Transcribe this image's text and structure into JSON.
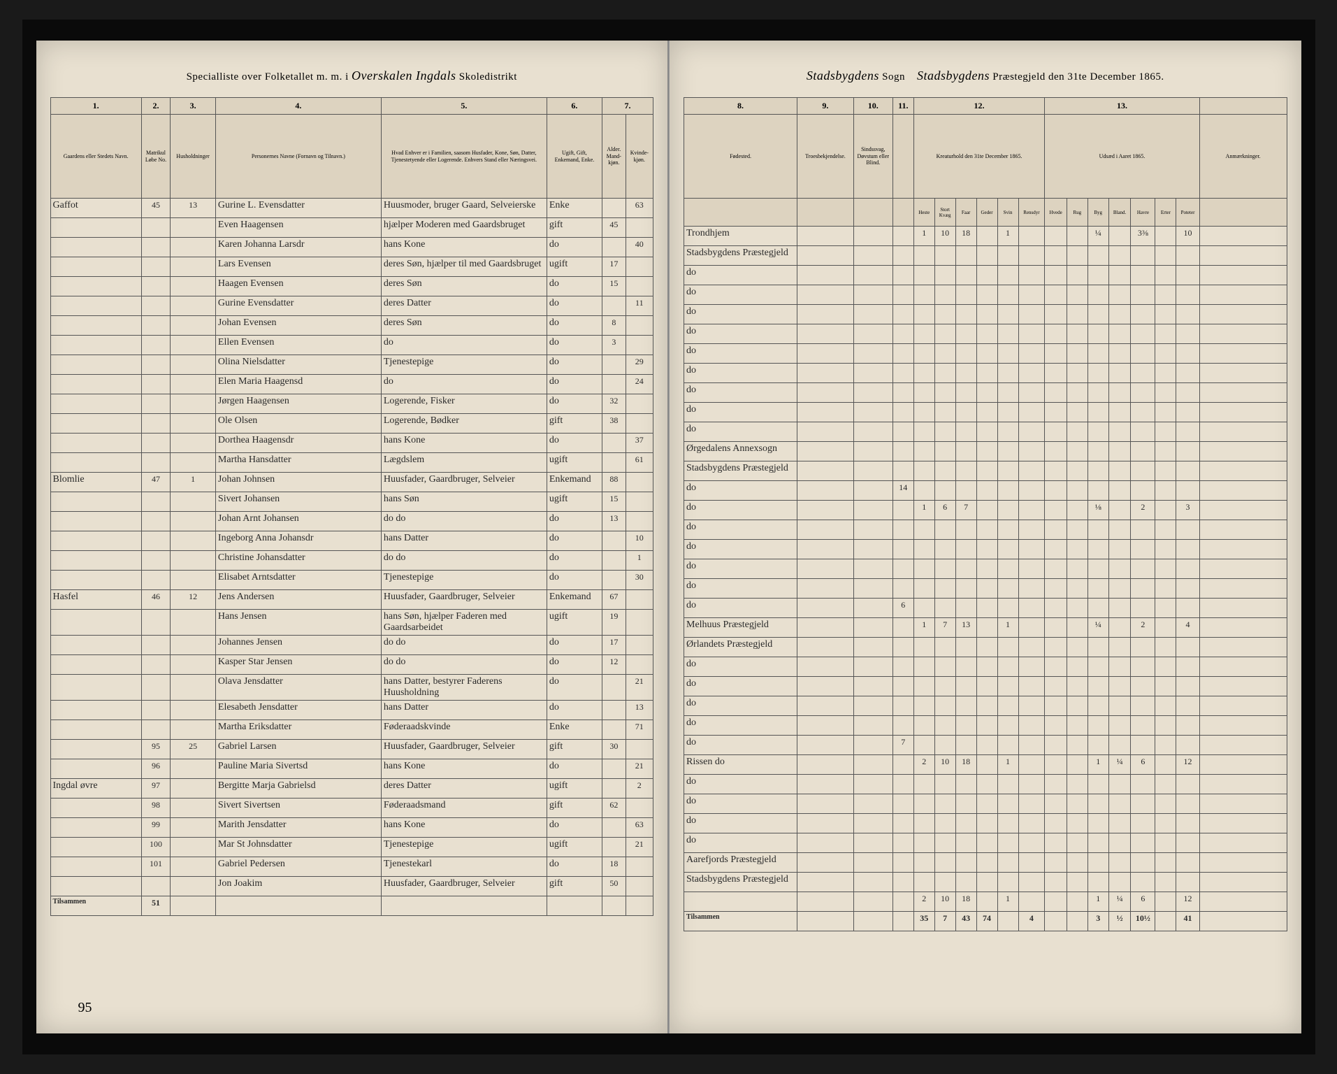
{
  "header_left": {
    "prefix": "Specialliste over Folketallet m. m. i",
    "script": "Overskalen Ingdals",
    "suffix": "Skoledistrikt"
  },
  "header_right": {
    "script1": "Stadsbygdens",
    "label1": "Sogn",
    "script2": "Stadsbygdens",
    "label2": "Præstegjeld den 31te December 1865."
  },
  "cols_left": {
    "c1": "1.",
    "c2": "2.",
    "c3": "3.",
    "c4": "4.",
    "c5": "5.",
    "c6": "6.",
    "c7": "7."
  },
  "cols_right": {
    "c8": "8.",
    "c9": "9.",
    "c10": "10.",
    "c11": "11.",
    "c12": "12.",
    "c13": "13."
  },
  "heads_left": {
    "h1": "Gaardens eller Stedets Navn.",
    "h2a": "Matrikul Løbe No.",
    "h2b": "Husholdninger",
    "h4": "Personernes Navne (Fornavn og Tilnavn.)",
    "h5": "Hvad Enhver er i Familien, saasom Husfader, Kone, Søn, Datter, Tjenestetyende eller Logerende. Enhvers Stand eller Næringsvei.",
    "h6": "Ugift, Gift, Enkemand, Enke.",
    "h7a": "Alder. Mand-kjøn.",
    "h7b": "Kvinde-kjøn."
  },
  "heads_right": {
    "h8": "Fødested.",
    "h9": "Troesbekjendelse.",
    "h10": "Sindssvag, Døvstum eller Blind.",
    "h11": "",
    "h12": "Kreaturhold den 31te December 1865.",
    "h13": "Udsæd i Aaret 1865.",
    "h14": "Anmærkninger."
  },
  "sub12": [
    "Heste",
    "Stort Kvæg",
    "Faar",
    "Geder",
    "Svin",
    "Rensdyr"
  ],
  "sub13": [
    "Hvede",
    "Rug",
    "Byg",
    "Bland.",
    "Havre",
    "Erter",
    "Poteter"
  ],
  "rows": [
    {
      "farm": "Gaffot",
      "mn": "45",
      "hh": "13",
      "name": "Gurine L. Evensdatter",
      "rel": "Huusmoder, bruger Gaard, Selveierske",
      "stat": "Enke",
      "m": "",
      "f": "63",
      "birth": "Trondhjem",
      "c12": [
        "1",
        "10",
        "18",
        "",
        "1",
        ""
      ],
      "c13": [
        "",
        "",
        "¼",
        "",
        "3⅜",
        "",
        "10"
      ]
    },
    {
      "farm": "",
      "mn": "",
      "hh": "",
      "name": "Even Haagensen",
      "rel": "hjælper Moderen med Gaardsbruget",
      "stat": "gift",
      "m": "45",
      "f": "",
      "birth": "Stadsbygdens Præstegjeld",
      "c12": [
        "",
        "",
        "",
        "",
        "",
        ""
      ],
      "c13": [
        "",
        "",
        "",
        "",
        "",
        "",
        ""
      ]
    },
    {
      "farm": "",
      "mn": "",
      "hh": "",
      "name": "Karen Johanna Larsdr",
      "rel": "hans Kone",
      "stat": "do",
      "m": "",
      "f": "40",
      "birth": "do",
      "c12": [
        "",
        "",
        "",
        "",
        "",
        ""
      ],
      "c13": [
        "",
        "",
        "",
        "",
        "",
        "",
        ""
      ]
    },
    {
      "farm": "",
      "mn": "",
      "hh": "",
      "name": "Lars Evensen",
      "rel": "deres Søn, hjælper til med Gaardsbruget",
      "stat": "ugift",
      "m": "17",
      "f": "",
      "birth": "do",
      "c12": [
        "",
        "",
        "",
        "",
        "",
        ""
      ],
      "c13": [
        "",
        "",
        "",
        "",
        "",
        "",
        ""
      ]
    },
    {
      "farm": "",
      "mn": "",
      "hh": "",
      "name": "Haagen Evensen",
      "rel": "deres Søn",
      "stat": "do",
      "m": "15",
      "f": "",
      "birth": "do",
      "c12": [
        "",
        "",
        "",
        "",
        "",
        ""
      ],
      "c13": [
        "",
        "",
        "",
        "",
        "",
        "",
        ""
      ]
    },
    {
      "farm": "",
      "mn": "",
      "hh": "",
      "name": "Gurine Evensdatter",
      "rel": "deres Datter",
      "stat": "do",
      "m": "",
      "f": "11",
      "birth": "do",
      "c12": [
        "",
        "",
        "",
        "",
        "",
        ""
      ],
      "c13": [
        "",
        "",
        "",
        "",
        "",
        "",
        ""
      ]
    },
    {
      "farm": "",
      "mn": "",
      "hh": "",
      "name": "Johan Evensen",
      "rel": "deres Søn",
      "stat": "do",
      "m": "8",
      "f": "",
      "birth": "do",
      "c12": [
        "",
        "",
        "",
        "",
        "",
        ""
      ],
      "c13": [
        "",
        "",
        "",
        "",
        "",
        "",
        ""
      ]
    },
    {
      "farm": "",
      "mn": "",
      "hh": "",
      "name": "Ellen Evensen",
      "rel": "do",
      "stat": "do",
      "m": "3",
      "f": "",
      "birth": "do",
      "c12": [
        "",
        "",
        "",
        "",
        "",
        ""
      ],
      "c13": [
        "",
        "",
        "",
        "",
        "",
        "",
        ""
      ]
    },
    {
      "farm": "",
      "mn": "",
      "hh": "",
      "name": "Olina Nielsdatter",
      "rel": "Tjenestepige",
      "stat": "do",
      "m": "",
      "f": "29",
      "birth": "do",
      "c12": [
        "",
        "",
        "",
        "",
        "",
        ""
      ],
      "c13": [
        "",
        "",
        "",
        "",
        "",
        "",
        ""
      ]
    },
    {
      "farm": "",
      "mn": "",
      "hh": "",
      "name": "Elen Maria Haagensd",
      "rel": "do",
      "stat": "do",
      "m": "",
      "f": "24",
      "birth": "do",
      "c12": [
        "",
        "",
        "",
        "",
        "",
        ""
      ],
      "c13": [
        "",
        "",
        "",
        "",
        "",
        "",
        ""
      ]
    },
    {
      "farm": "",
      "mn": "",
      "hh": "",
      "name": "Jørgen Haagensen",
      "rel": "Logerende, Fisker",
      "stat": "do",
      "m": "32",
      "f": "",
      "birth": "do",
      "c12": [
        "",
        "",
        "",
        "",
        "",
        ""
      ],
      "c13": [
        "",
        "",
        "",
        "",
        "",
        "",
        ""
      ]
    },
    {
      "farm": "",
      "mn": "",
      "hh": "",
      "name": "Ole Olsen",
      "rel": "Logerende, Bødker",
      "stat": "gift",
      "m": "38",
      "f": "",
      "birth": "Ørgedalens Annexsogn",
      "c12": [
        "",
        "",
        "",
        "",
        "",
        ""
      ],
      "c13": [
        "",
        "",
        "",
        "",
        "",
        "",
        ""
      ]
    },
    {
      "farm": "",
      "mn": "",
      "hh": "",
      "name": "Dorthea Haagensdr",
      "rel": "hans Kone",
      "stat": "do",
      "m": "",
      "f": "37",
      "birth": "Stadsbygdens Præstegjeld",
      "c12": [
        "",
        "",
        "",
        "",
        "",
        ""
      ],
      "c13": [
        "",
        "",
        "",
        "",
        "",
        "",
        ""
      ]
    },
    {
      "farm": "",
      "mn": "",
      "hh": "",
      "name": "Martha Hansdatter",
      "rel": "Lægdslem",
      "stat": "ugift",
      "m": "",
      "f": "61",
      "birth": "do",
      "c12": [
        "",
        "",
        "",
        "",
        "",
        ""
      ],
      "c13": [
        "",
        "",
        "",
        "",
        "",
        "",
        ""
      ]
    },
    {
      "farm": "Blomlie",
      "mn": "47",
      "hh": "1",
      "name": "Johan Johnsen",
      "rel": "Huusfader, Gaardbruger, Selveier",
      "stat": "Enkemand",
      "m": "88",
      "f": "",
      "birth": "do",
      "c12": [
        "1",
        "6",
        "7",
        "",
        "",
        ""
      ],
      "c13": [
        "",
        "",
        "⅛",
        "",
        "2",
        "",
        "3"
      ]
    },
    {
      "farm": "",
      "mn": "",
      "hh": "",
      "name": "Sivert Johansen",
      "rel": "hans Søn",
      "stat": "ugift",
      "m": "15",
      "f": "",
      "birth": "do",
      "c12": [
        "",
        "",
        "",
        "",
        "",
        ""
      ],
      "c13": [
        "",
        "",
        "",
        "",
        "",
        "",
        ""
      ]
    },
    {
      "farm": "",
      "mn": "",
      "hh": "",
      "name": "Johan Arnt Johansen",
      "rel": "do do",
      "stat": "do",
      "m": "13",
      "f": "",
      "birth": "do",
      "c12": [
        "",
        "",
        "",
        "",
        "",
        ""
      ],
      "c13": [
        "",
        "",
        "",
        "",
        "",
        "",
        ""
      ]
    },
    {
      "farm": "",
      "mn": "",
      "hh": "",
      "name": "Ingeborg Anna Johansdr",
      "rel": "hans Datter",
      "stat": "do",
      "m": "",
      "f": "10",
      "birth": "do",
      "c12": [
        "",
        "",
        "",
        "",
        "",
        ""
      ],
      "c13": [
        "",
        "",
        "",
        "",
        "",
        "",
        ""
      ]
    },
    {
      "farm": "",
      "mn": "",
      "hh": "",
      "name": "Christine Johansdatter",
      "rel": "do do",
      "stat": "do",
      "m": "",
      "f": "1",
      "birth": "do",
      "c12": [
        "",
        "",
        "",
        "",
        "",
        ""
      ],
      "c13": [
        "",
        "",
        "",
        "",
        "",
        "",
        ""
      ]
    },
    {
      "farm": "",
      "mn": "",
      "hh": "",
      "name": "Elisabet Arntsdatter",
      "rel": "Tjenestepige",
      "stat": "do",
      "m": "",
      "f": "30",
      "birth": "do",
      "c12": [
        "",
        "",
        "",
        "",
        "",
        ""
      ],
      "c13": [
        "",
        "",
        "",
        "",
        "",
        "",
        ""
      ]
    },
    {
      "farm": "Hasfel",
      "mn": "46",
      "hh": "12",
      "name": "Jens Andersen",
      "rel": "Huusfader, Gaardbruger, Selveier",
      "stat": "Enkemand",
      "m": "67",
      "f": "",
      "birth": "Melhuus Præstegjeld",
      "c12": [
        "1",
        "7",
        "13",
        "",
        "1",
        ""
      ],
      "c13": [
        "",
        "",
        "¼",
        "",
        "2",
        "",
        "4"
      ]
    },
    {
      "farm": "",
      "mn": "",
      "hh": "",
      "name": "Hans Jensen",
      "rel": "hans Søn, hjælper Faderen med Gaardsarbeidet",
      "stat": "ugift",
      "m": "19",
      "f": "",
      "birth": "Ørlandets Præstegjeld",
      "c12": [
        "",
        "",
        "",
        "",
        "",
        ""
      ],
      "c13": [
        "",
        "",
        "",
        "",
        "",
        "",
        ""
      ]
    },
    {
      "farm": "",
      "mn": "",
      "hh": "",
      "name": "Johannes Jensen",
      "rel": "do do",
      "stat": "do",
      "m": "17",
      "f": "",
      "birth": "do",
      "c12": [
        "",
        "",
        "",
        "",
        "",
        ""
      ],
      "c13": [
        "",
        "",
        "",
        "",
        "",
        "",
        ""
      ]
    },
    {
      "farm": "",
      "mn": "",
      "hh": "",
      "name": "Kasper Star Jensen",
      "rel": "do do",
      "stat": "do",
      "m": "12",
      "f": "",
      "birth": "do",
      "c12": [
        "",
        "",
        "",
        "",
        "",
        ""
      ],
      "c13": [
        "",
        "",
        "",
        "",
        "",
        "",
        ""
      ]
    },
    {
      "farm": "",
      "mn": "",
      "hh": "",
      "name": "Olava Jensdatter",
      "rel": "hans Datter, bestyrer Faderens Huusholdning",
      "stat": "do",
      "m": "",
      "f": "21",
      "birth": "do",
      "c12": [
        "",
        "",
        "",
        "",
        "",
        ""
      ],
      "c13": [
        "",
        "",
        "",
        "",
        "",
        "",
        ""
      ]
    },
    {
      "farm": "",
      "mn": "",
      "hh": "",
      "name": "Elesabeth Jensdatter",
      "rel": "hans Datter",
      "stat": "do",
      "m": "",
      "f": "13",
      "birth": "do",
      "c12": [
        "",
        "",
        "",
        "",
        "",
        ""
      ],
      "c13": [
        "",
        "",
        "",
        "",
        "",
        "",
        ""
      ]
    },
    {
      "farm": "",
      "mn": "",
      "hh": "",
      "name": "Martha Eriksdatter",
      "rel": "Føderaadskvinde",
      "stat": "Enke",
      "m": "",
      "f": "71",
      "birth": "do",
      "c12": [
        "",
        "",
        "",
        "",
        "",
        ""
      ],
      "c13": [
        "",
        "",
        "",
        "",
        "",
        "",
        ""
      ]
    },
    {
      "farm": "",
      "mn": "95",
      "hh": "25",
      "name": "Gabriel Larsen",
      "rel": "Huusfader, Gaardbruger, Selveier",
      "stat": "gift",
      "m": "30",
      "f": "",
      "birth": "Rissen do",
      "c12": [
        "2",
        "10",
        "18",
        "",
        "1",
        ""
      ],
      "c13": [
        "",
        "",
        "1",
        "¼",
        "6",
        "",
        "12"
      ]
    },
    {
      "farm": "",
      "mn": "96",
      "hh": "",
      "name": "Pauline Maria Sivertsd",
      "rel": "hans Kone",
      "stat": "do",
      "m": "",
      "f": "21",
      "birth": "do",
      "c12": [
        "",
        "",
        "",
        "",
        "",
        ""
      ],
      "c13": [
        "",
        "",
        "",
        "",
        "",
        "",
        ""
      ]
    },
    {
      "farm": "Ingdal øvre",
      "mn": "97",
      "hh": "",
      "name": "Bergitte Marja Gabrielsd",
      "rel": "deres Datter",
      "stat": "ugift",
      "m": "",
      "f": "2",
      "birth": "do",
      "c12": [
        "",
        "",
        "",
        "",
        "",
        ""
      ],
      "c13": [
        "",
        "",
        "",
        "",
        "",
        "",
        ""
      ]
    },
    {
      "farm": "",
      "mn": "98",
      "hh": "",
      "name": "Sivert Sivertsen",
      "rel": "Føderaadsmand",
      "stat": "gift",
      "m": "62",
      "f": "",
      "birth": "do",
      "c12": [
        "",
        "",
        "",
        "",
        "",
        ""
      ],
      "c13": [
        "",
        "",
        "",
        "",
        "",
        "",
        ""
      ]
    },
    {
      "farm": "",
      "mn": "99",
      "hh": "",
      "name": "Marith Jensdatter",
      "rel": "hans Kone",
      "stat": "do",
      "m": "",
      "f": "63",
      "birth": "do",
      "c12": [
        "",
        "",
        "",
        "",
        "",
        ""
      ],
      "c13": [
        "",
        "",
        "",
        "",
        "",
        "",
        ""
      ]
    },
    {
      "farm": "",
      "mn": "100",
      "hh": "",
      "name": "Mar St Johnsdatter",
      "rel": "Tjenestepige",
      "stat": "ugift",
      "m": "",
      "f": "21",
      "birth": "Aarefjords Præstegjeld",
      "c12": [
        "",
        "",
        "",
        "",
        "",
        ""
      ],
      "c13": [
        "",
        "",
        "",
        "",
        "",
        "",
        ""
      ]
    },
    {
      "farm": "",
      "mn": "101",
      "hh": "",
      "name": "Gabriel Pedersen",
      "rel": "Tjenestekarl",
      "stat": "do",
      "m": "18",
      "f": "",
      "birth": "Stadsbygdens Præstegjeld",
      "c12": [
        "",
        "",
        "",
        "",
        "",
        ""
      ],
      "c13": [
        "",
        "",
        "",
        "",
        "",
        "",
        ""
      ]
    },
    {
      "farm": "",
      "mn": "",
      "hh": "",
      "name": "Jon Joakim",
      "rel": "Huusfader, Gaardbruger, Selveier",
      "stat": "gift",
      "m": "50",
      "f": "",
      "birth": "",
      "c12": [
        "2",
        "10",
        "18",
        "",
        "1",
        ""
      ],
      "c13": [
        "",
        "",
        "1",
        "¼",
        "6",
        "",
        "12"
      ]
    }
  ],
  "tilsammen_label": "Tilsammen",
  "tilsammen_left": "51",
  "tilsammen_right": {
    "c12": [
      "35",
      "7",
      "43",
      "74",
      "",
      "4"
    ],
    "c13": [
      "",
      "",
      "3",
      "½",
      "10½",
      "",
      "41"
    ]
  },
  "page_number": "95",
  "c11_vals": {
    "0": "",
    "13": "14",
    "19": "6",
    "26": "7"
  }
}
